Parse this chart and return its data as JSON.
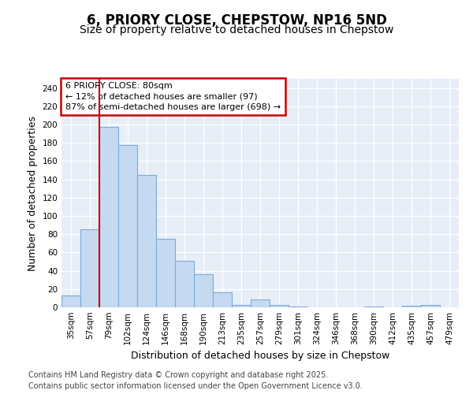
{
  "title": "6, PRIORY CLOSE, CHEPSTOW, NP16 5ND",
  "subtitle": "Size of property relative to detached houses in Chepstow",
  "xlabel": "Distribution of detached houses by size in Chepstow",
  "ylabel": "Number of detached properties",
  "categories": [
    "35sqm",
    "57sqm",
    "79sqm",
    "102sqm",
    "124sqm",
    "146sqm",
    "168sqm",
    "190sqm",
    "213sqm",
    "235sqm",
    "257sqm",
    "279sqm",
    "301sqm",
    "324sqm",
    "346sqm",
    "368sqm",
    "390sqm",
    "412sqm",
    "435sqm",
    "457sqm",
    "479sqm"
  ],
  "values": [
    13,
    85,
    197,
    178,
    145,
    75,
    51,
    36,
    16,
    3,
    9,
    3,
    1,
    0,
    0,
    0,
    1,
    0,
    2,
    3,
    0
  ],
  "bar_color": "#c5d9f0",
  "bar_edgecolor": "#7aacdb",
  "highlight_bar_index": 2,
  "highlight_color": "#cc0000",
  "annotation_text": "6 PRIORY CLOSE: 80sqm\n← 12% of detached houses are smaller (97)\n87% of semi-detached houses are larger (698) →",
  "annotation_box_color": "#cc0000",
  "ylim": [
    0,
    250
  ],
  "yticks": [
    0,
    20,
    40,
    60,
    80,
    100,
    120,
    140,
    160,
    180,
    200,
    220,
    240
  ],
  "footer": "Contains HM Land Registry data © Crown copyright and database right 2025.\nContains public sector information licensed under the Open Government Licence v3.0.",
  "bg_color": "#ffffff",
  "plot_bg_color": "#e8eef8",
  "grid_color": "#ffffff",
  "title_fontsize": 12,
  "subtitle_fontsize": 10,
  "axis_label_fontsize": 9,
  "tick_fontsize": 7.5,
  "footer_fontsize": 7,
  "annotation_fontsize": 8
}
